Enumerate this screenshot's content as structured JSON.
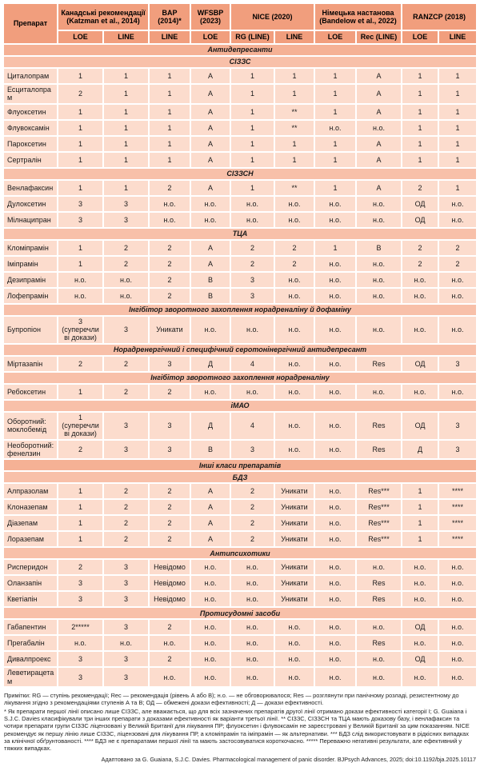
{
  "table": {
    "drug_col_header": "Препарат",
    "column_groups": [
      {
        "label": "Канадські рекомендації (Katzman et al., 2014)",
        "subs": [
          "LOE",
          "LINE"
        ]
      },
      {
        "label": "BAP (2014)*",
        "subs": [
          "LINE"
        ]
      },
      {
        "label": "WFSBP (2023)",
        "subs": [
          "LOE"
        ]
      },
      {
        "label": "NICE (2020)",
        "subs": [
          "RG (LINE)",
          "LINE"
        ]
      },
      {
        "label": "Німецька настанова (Bandelow et al., 2022)",
        "subs": [
          "LOE",
          "Rec (LINE)"
        ]
      },
      {
        "label": "RANZCP (2018)",
        "subs": [
          "LOE",
          "LINE"
        ]
      }
    ],
    "sections": [
      {
        "title": "Антидепресанти",
        "level": "major",
        "rows": []
      },
      {
        "title": "СІЗЗС",
        "level": "sub",
        "rows": [
          {
            "drug": "Циталопрам",
            "values": [
              "1",
              "1",
              "1",
              "А",
              "1",
              "1",
              "1",
              "А",
              "1",
              "1"
            ]
          },
          {
            "drug": "Есциталопрам",
            "values": [
              "2",
              "1",
              "1",
              "А",
              "1",
              "1",
              "1",
              "А",
              "1",
              "1"
            ]
          },
          {
            "drug": "Флуоксетин",
            "values": [
              "1",
              "1",
              "1",
              "А",
              "1",
              "**",
              "1",
              "А",
              "1",
              "1"
            ]
          },
          {
            "drug": "Флувоксамін",
            "values": [
              "1",
              "1",
              "1",
              "А",
              "1",
              "**",
              "н.о.",
              "н.о.",
              "1",
              "1"
            ]
          },
          {
            "drug": "Пароксетин",
            "values": [
              "1",
              "1",
              "1",
              "А",
              "1",
              "1",
              "1",
              "А",
              "1",
              "1"
            ]
          },
          {
            "drug": "Сертралін",
            "values": [
              "1",
              "1",
              "1",
              "А",
              "1",
              "1",
              "1",
              "А",
              "1",
              "1"
            ]
          }
        ]
      },
      {
        "title": "СІЗЗСН",
        "level": "sub",
        "rows": [
          {
            "drug": "Венлафаксин",
            "values": [
              "1",
              "1",
              "2",
              "А",
              "1",
              "**",
              "1",
              "А",
              "2",
              "1"
            ]
          },
          {
            "drug": "Дулоксетин",
            "values": [
              "3",
              "3",
              "н.о.",
              "н.о.",
              "н.о.",
              "н.о.",
              "н.о.",
              "н.о.",
              "ОД",
              "н.о."
            ]
          },
          {
            "drug": "Мілнаципран",
            "values": [
              "3",
              "3",
              "н.о.",
              "н.о.",
              "н.о.",
              "н.о.",
              "н.о.",
              "н.о.",
              "ОД",
              "н.о."
            ]
          }
        ]
      },
      {
        "title": "ТЦА",
        "level": "sub",
        "rows": [
          {
            "drug": "Кломіпрамін",
            "values": [
              "1",
              "2",
              "2",
              "А",
              "2",
              "2",
              "1",
              "В",
              "2",
              "2"
            ]
          },
          {
            "drug": "Іміпрамін",
            "values": [
              "1",
              "2",
              "2",
              "А",
              "2",
              "2",
              "н.о.",
              "н.о.",
              "2",
              "2"
            ]
          },
          {
            "drug": "Дезипрамін",
            "values": [
              "н.о.",
              "н.о.",
              "2",
              "В",
              "3",
              "н.о.",
              "н.о.",
              "н.о.",
              "н.о.",
              "н.о."
            ]
          },
          {
            "drug": "Лофепрамін",
            "values": [
              "н.о.",
              "н.о.",
              "2",
              "В",
              "3",
              "н.о.",
              "н.о.",
              "н.о.",
              "н.о.",
              "н.о."
            ]
          }
        ]
      },
      {
        "title": "Інгібітор зворотного захоплення норадреналіну й дофаміну",
        "level": "sub",
        "rows": [
          {
            "drug": "Бупропіон",
            "values": [
              "3 (суперечливі докази)",
              "3",
              "Уникати",
              "н.о.",
              "н.о.",
              "н.о.",
              "н.о.",
              "н.о.",
              "н.о.",
              "н.о."
            ]
          }
        ]
      },
      {
        "title": "Норадренергічний і специфічний серотонінергічний антидепресант",
        "level": "sub",
        "rows": [
          {
            "drug": "Міртазапін",
            "values": [
              "2",
              "2",
              "3",
              "Д",
              "4",
              "н.о.",
              "н.о.",
              "Res",
              "ОД",
              "3"
            ]
          }
        ]
      },
      {
        "title": "Інгібітор зворотного захоплення норадреналіну",
        "level": "sub",
        "rows": [
          {
            "drug": "Ребоксетин",
            "values": [
              "1",
              "2",
              "2",
              "н.о.",
              "н.о.",
              "н.о.",
              "н.о.",
              "н.о.",
              "н.о.",
              "н.о."
            ]
          }
        ]
      },
      {
        "title": "іМАО",
        "level": "sub",
        "rows": [
          {
            "drug": "Оборотний: моклобемід",
            "values": [
              "1 (суперечливі докази)",
              "3",
              "3",
              "Д",
              "4",
              "н.о.",
              "н.о.",
              "Res",
              "ОД",
              "3"
            ]
          },
          {
            "drug": "Необоротний: фенелзин",
            "values": [
              "2",
              "3",
              "3",
              "В",
              "3",
              "н.о.",
              "н.о.",
              "Res",
              "Д",
              "3"
            ]
          }
        ]
      },
      {
        "title": "Інші класи препаратів",
        "level": "major",
        "rows": []
      },
      {
        "title": "БДЗ",
        "level": "sub",
        "rows": [
          {
            "drug": "Алпразолам",
            "values": [
              "1",
              "2",
              "2",
              "А",
              "2",
              "Уникати",
              "н.о.",
              "Res***",
              "1",
              "****"
            ]
          },
          {
            "drug": "Клоназепам",
            "values": [
              "1",
              "2",
              "2",
              "А",
              "2",
              "Уникати",
              "н.о.",
              "Res***",
              "1",
              "****"
            ]
          },
          {
            "drug": "Діазепам",
            "values": [
              "1",
              "2",
              "2",
              "А",
              "2",
              "Уникати",
              "н.о.",
              "Res***",
              "1",
              "****"
            ]
          },
          {
            "drug": "Лоразепам",
            "values": [
              "1",
              "2",
              "2",
              "А",
              "2",
              "Уникати",
              "н.о.",
              "Res***",
              "1",
              "****"
            ]
          }
        ]
      },
      {
        "title": "Антипсихотики",
        "level": "sub",
        "rows": [
          {
            "drug": "Рисперидон",
            "values": [
              "2",
              "3",
              "Невідомо",
              "н.о.",
              "н.о.",
              "Уникати",
              "н.о.",
              "н.о.",
              "н.о.",
              "н.о."
            ]
          },
          {
            "drug": "Оланзапін",
            "values": [
              "3",
              "3",
              "Невідомо",
              "н.о.",
              "н.о.",
              "Уникати",
              "н.о.",
              "Res",
              "н.о.",
              "н.о."
            ]
          },
          {
            "drug": "Кветіапін",
            "values": [
              "3",
              "3",
              "Невідомо",
              "н.о.",
              "н.о.",
              "Уникати",
              "н.о.",
              "Res",
              "н.о.",
              "н.о."
            ]
          }
        ]
      },
      {
        "title": "Протисудомні засоби",
        "level": "sub",
        "rows": [
          {
            "drug": "Габапентин",
            "values": [
              "2*****",
              "3",
              "2",
              "н.о.",
              "н.о.",
              "н.о.",
              "н.о.",
              "н.о.",
              "ОД",
              "н.о."
            ]
          },
          {
            "drug": "Прегабалін",
            "values": [
              "н.о.",
              "н.о.",
              "н.о.",
              "н.о.",
              "н.о.",
              "н.о.",
              "н.о.",
              "Res",
              "н.о.",
              "н.о."
            ]
          },
          {
            "drug": "Дивалпроекс",
            "values": [
              "3",
              "3",
              "2",
              "н.о.",
              "н.о.",
              "н.о.",
              "н.о.",
              "н.о.",
              "ОД",
              "н.о."
            ]
          },
          {
            "drug": "Леветирацетам",
            "values": [
              "3",
              "3",
              "н.о.",
              "н.о.",
              "н.о.",
              "н.о.",
              "н.о.",
              "н.о.",
              "н.о.",
              "н.о."
            ]
          }
        ]
      }
    ]
  },
  "footnotes": {
    "definitions": "Примітки: RG — ступінь рекомендації; Rec — рекомендація (рівень А або В); н.о. — не обговорювалося; Res — розглянути при панічному розладі, резистентному до лікування згідно з рекомендаціями ступенів А та В; ОД — обмежені докази ефективності; Д — докази ефективності.",
    "asterisks": "* Як препарати першої лінії описано лише СІЗЗС, але вважається, що для всіх зазначених препаратів другої лінії отримано докази ефективності категорії І; G. Guaiana і S.J.C. Davies класифікували три інших препарати з доказами ефективності як варіанти третьої лінії. ** СІЗЗС, СІЗЗСН та ТЦА мають доказову базу, і венлафаксин та чотири препарати групи СІЗЗС ліцензовані у Великій Британії для лікування ПР; флуоксетин і флувоксамін не зареєстровані у Великій Британії за цим показанням. NICE рекомендує як першу лінію лише СІЗЗС, ліцензовані для лікування ПР, а кломіпрамін та іміпрамін — як альтернативи. *** БДЗ слід використовувати в рідкісних випадках за клінічної обґрунтованості. **** БДЗ не є препаратами першої лінії та мають застосовуватися короткочасно. ***** Переважно негативні результати, але ефективний у тяжких випадках."
  },
  "attribution": "Адаптовано за G. Guaiana, S.J.C. Davies. Pharmacological management of panic disorder. BJPsych Advances, 2025; doi:10.1192/bja.2025.10117"
}
